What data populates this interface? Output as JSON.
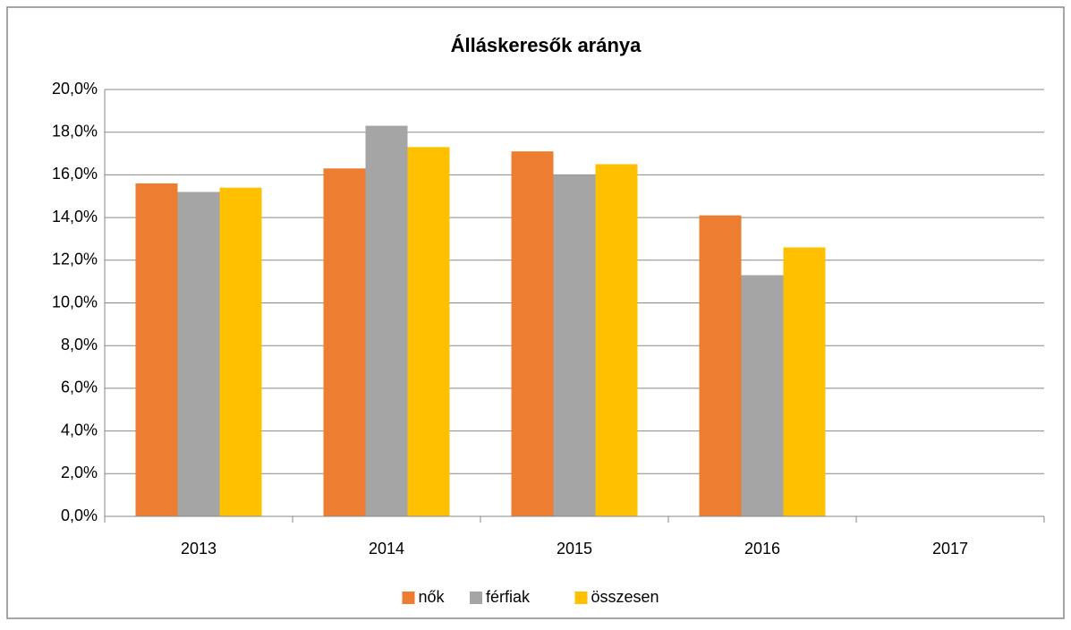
{
  "chart_data": {
    "type": "bar",
    "title": "Álláskeresők aránya",
    "categories": [
      "2013",
      "2014",
      "2015",
      "2016",
      "2017"
    ],
    "series": [
      {
        "name": "nők",
        "color": "#ED7D31",
        "values": [
          15.6,
          16.3,
          17.1,
          14.1,
          null
        ]
      },
      {
        "name": "férfiak",
        "color": "#A5A5A5",
        "values": [
          15.2,
          18.3,
          16.0,
          11.3,
          null
        ]
      },
      {
        "name": "összesen",
        "color": "#FFC000",
        "values": [
          15.4,
          17.3,
          16.5,
          12.6,
          null
        ]
      }
    ],
    "ylim": [
      0,
      20
    ],
    "yticks": [
      {
        "value": 0,
        "label": "0,0%"
      },
      {
        "value": 2,
        "label": "2,0%"
      },
      {
        "value": 4,
        "label": "4,0%"
      },
      {
        "value": 6,
        "label": "6,0%"
      },
      {
        "value": 8,
        "label": "8,0%"
      },
      {
        "value": 10,
        "label": "10,0%"
      },
      {
        "value": 12,
        "label": "12,0%"
      },
      {
        "value": 14,
        "label": "14,0%"
      },
      {
        "value": 16,
        "label": "16,0%"
      },
      {
        "value": 18,
        "label": "18,0%"
      },
      {
        "value": 20,
        "label": "20,0%"
      }
    ],
    "grid": true,
    "legend": "bottom"
  }
}
